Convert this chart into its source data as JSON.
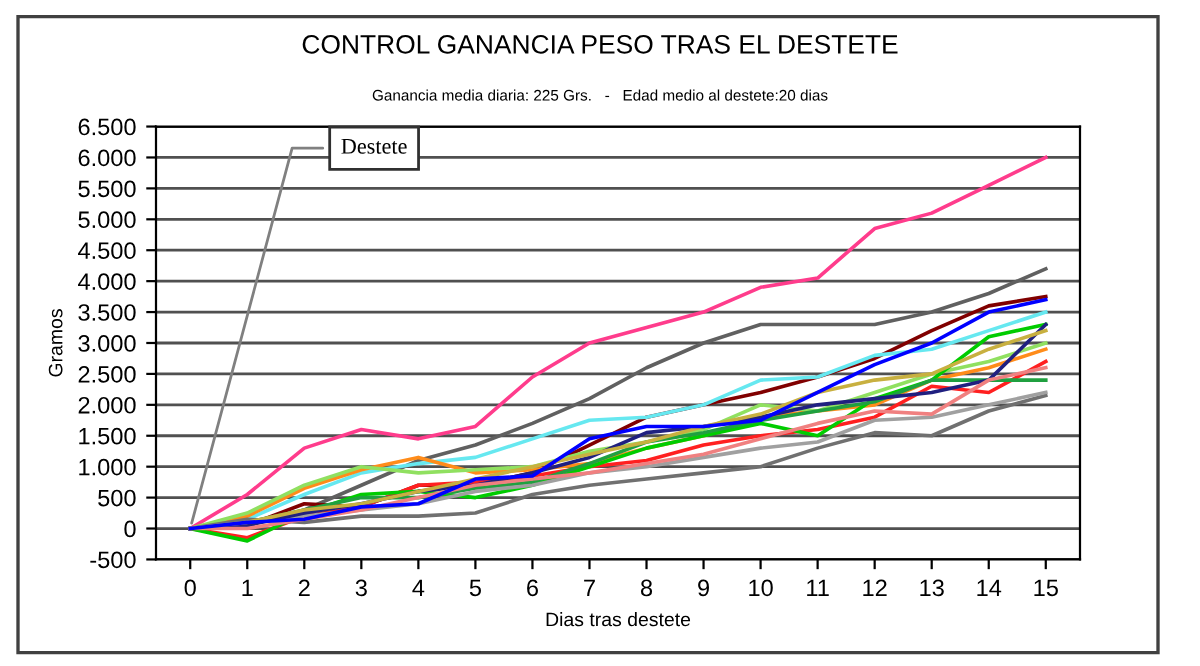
{
  "chart_data": {
    "type": "line",
    "title": "CONTROL GANANCIA PESO TRAS EL DESTETE",
    "subtitle": "Ganancia media diaria: 225 Grs.   -   Edad medio al destete:20 dias",
    "xlabel": "Dias tras destete",
    "ylabel": "Gramos",
    "x": [
      0,
      1,
      2,
      3,
      4,
      5,
      6,
      7,
      8,
      9,
      10,
      11,
      12,
      13,
      14,
      15
    ],
    "xlim": [
      -0.6,
      15.6
    ],
    "xticks": [
      0,
      1,
      2,
      3,
      4,
      5,
      6,
      7,
      8,
      9,
      10,
      11,
      12,
      13,
      14,
      15
    ],
    "ylim": [
      -500,
      6500
    ],
    "yticks": [
      {
        "value": -500,
        "label": "-500"
      },
      0,
      500,
      {
        "value": 1000,
        "label": "1.000"
      },
      {
        "value": 1500,
        "label": "1.500"
      },
      {
        "value": 2000,
        "label": "2.000"
      },
      {
        "value": 2500,
        "label": "2.500"
      },
      {
        "value": 3000,
        "label": "3.000"
      },
      {
        "value": 3500,
        "label": "3.500"
      },
      {
        "value": 4000,
        "label": "4.000"
      },
      {
        "value": 4500,
        "label": "4.500"
      },
      {
        "value": 5000,
        "label": "5.000"
      },
      {
        "value": 5500,
        "label": "5.500"
      },
      {
        "value": 6000,
        "label": "6.000"
      },
      {
        "value": 6500,
        "label": "6.500"
      }
    ],
    "grid": "y",
    "legend": false,
    "marker": "none",
    "line_style": "solid",
    "annotations": [
      {
        "text": "Destete",
        "x": 0,
        "y": 0
      }
    ],
    "series": [
      {
        "color": "#ff3c8c",
        "values": [
          0,
          550,
          1300,
          1600,
          1450,
          1650,
          2450,
          3000,
          3250,
          3500,
          3900,
          4050,
          4850,
          5100,
          5550,
          6000
        ]
      },
      {
        "color": "#606060",
        "values": [
          0,
          50,
          300,
          700,
          1100,
          1350,
          1700,
          2100,
          2600,
          3000,
          3300,
          3300,
          3300,
          3500,
          3800,
          4200
        ]
      },
      {
        "color": "#800000",
        "values": [
          0,
          50,
          400,
          350,
          700,
          700,
          900,
          1350,
          1800,
          2000,
          2200,
          2450,
          2750,
          3200,
          3600,
          3750
        ]
      },
      {
        "color": "#66e8f0",
        "values": [
          0,
          150,
          550,
          900,
          1050,
          1150,
          1450,
          1750,
          1800,
          2000,
          2400,
          2450,
          2800,
          2900,
          3200,
          3500
        ]
      },
      {
        "color": "#ff8c1a",
        "values": [
          0,
          200,
          650,
          950,
          1150,
          900,
          950,
          1050,
          1300,
          1500,
          1800,
          1900,
          2000,
          2400,
          2600,
          2900
        ]
      },
      {
        "color": "#ff2020",
        "values": [
          0,
          -150,
          200,
          350,
          700,
          750,
          850,
          1000,
          1100,
          1350,
          1500,
          1600,
          1800,
          2300,
          2200,
          2700
        ]
      },
      {
        "color": "#90e060",
        "values": [
          0,
          250,
          700,
          1000,
          900,
          950,
          1000,
          1250,
          1400,
          1600,
          2000,
          1900,
          2200,
          2500,
          2700,
          3000
        ]
      },
      {
        "color": "#00cc00",
        "values": [
          0,
          -200,
          250,
          550,
          600,
          500,
          700,
          1000,
          1300,
          1500,
          1700,
          1500,
          2100,
          2400,
          3100,
          3300
        ]
      },
      {
        "color": "#20a040",
        "values": [
          0,
          100,
          300,
          500,
          500,
          650,
          750,
          1050,
          1400,
          1550,
          1750,
          1900,
          2050,
          2400,
          2400,
          2400
        ]
      },
      {
        "color": "#707070",
        "values": [
          0,
          150,
          100,
          200,
          200,
          250,
          550,
          700,
          800,
          900,
          1000,
          1300,
          1550,
          1500,
          1900,
          2150
        ]
      },
      {
        "color": "#a0a0a0",
        "values": [
          0,
          100,
          200,
          300,
          400,
          600,
          700,
          900,
          1000,
          1150,
          1300,
          1400,
          1750,
          1800,
          2000,
          2200
        ]
      },
      {
        "color": "#202080",
        "values": [
          0,
          50,
          250,
          400,
          600,
          700,
          900,
          1150,
          1550,
          1650,
          1800,
          2000,
          2100,
          2200,
          2400,
          3300
        ]
      },
      {
        "color": "#f08080",
        "values": [
          0,
          0,
          150,
          300,
          500,
          700,
          800,
          900,
          1050,
          1200,
          1450,
          1700,
          1900,
          1850,
          2400,
          2600
        ]
      },
      {
        "color": "#c8b040",
        "values": [
          0,
          100,
          300,
          400,
          600,
          800,
          1000,
          1200,
          1400,
          1650,
          1850,
          2200,
          2400,
          2500,
          2900,
          3200
        ]
      },
      {
        "color": "#0000ff",
        "values": [
          0,
          100,
          150,
          350,
          400,
          800,
          850,
          1450,
          1650,
          1650,
          1750,
          2200,
          2650,
          3000,
          3500,
          3700
        ]
      }
    ]
  }
}
